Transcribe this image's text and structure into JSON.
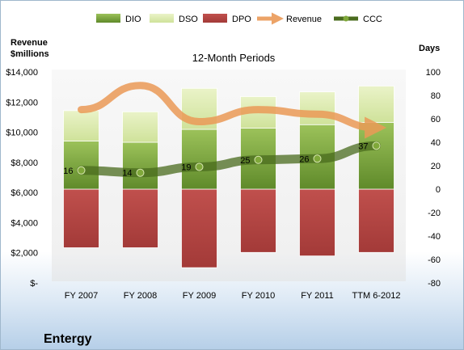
{
  "chart_data": {
    "type": "bar",
    "title": "12-Month Periods",
    "company": "Entergy",
    "left_axis": {
      "label_line1": "Revenue",
      "label_line2": "$millions",
      "range": [
        0,
        14000
      ],
      "ticks": [
        0,
        2000,
        4000,
        6000,
        8000,
        10000,
        12000,
        14000
      ],
      "tick_labels": [
        "$-",
        "$2,000",
        "$4,000",
        "$6,000",
        "$8,000",
        "$10,000",
        "$12,000",
        "$14,000"
      ]
    },
    "right_axis": {
      "label": "Days",
      "range": [
        -80,
        100
      ],
      "ticks": [
        -80,
        -60,
        -40,
        -20,
        0,
        20,
        40,
        60,
        80,
        100
      ],
      "tick_labels": [
        "-80",
        "-60",
        "-40",
        "-20",
        "0",
        "20",
        "40",
        "60",
        "80",
        "100"
      ]
    },
    "categories": [
      "FY 2007",
      "FY 2008",
      "FY 2009",
      "FY 2010",
      "FY 2011",
      "TTM 6-2012"
    ],
    "legend": [
      "DIO",
      "DSO",
      "DPO",
      "Revenue",
      "CCC"
    ],
    "series": [
      {
        "name": "DIO",
        "axis": "days",
        "values": [
          41,
          40,
          51,
          52,
          55,
          57
        ]
      },
      {
        "name": "DSO",
        "axis": "days",
        "values": [
          26,
          26,
          35,
          27,
          28,
          31
        ]
      },
      {
        "name": "DPO",
        "axis": "days",
        "values": [
          -50,
          -50,
          -67,
          -54,
          -57,
          -54
        ]
      },
      {
        "name": "Revenue",
        "axis": "revenue",
        "values": [
          11500,
          13100,
          10700,
          11500,
          11200,
          10300
        ]
      },
      {
        "name": "CCC",
        "axis": "days",
        "values": [
          16,
          14,
          19,
          25,
          26,
          37
        ]
      }
    ],
    "colors": {
      "DIO_top": "#9cc25a",
      "DIO_bottom": "#5f8a2a",
      "DSO_top": "#eaf3c8",
      "DSO_bottom": "#cfe29a",
      "DPO_top": "#c0504d",
      "DPO_bottom": "#a33a38",
      "Revenue": "#eb9a57",
      "CCC": "#4a6b1e",
      "CCC_marker": "#7fa83a"
    },
    "grid": false,
    "legend_position": "top"
  }
}
